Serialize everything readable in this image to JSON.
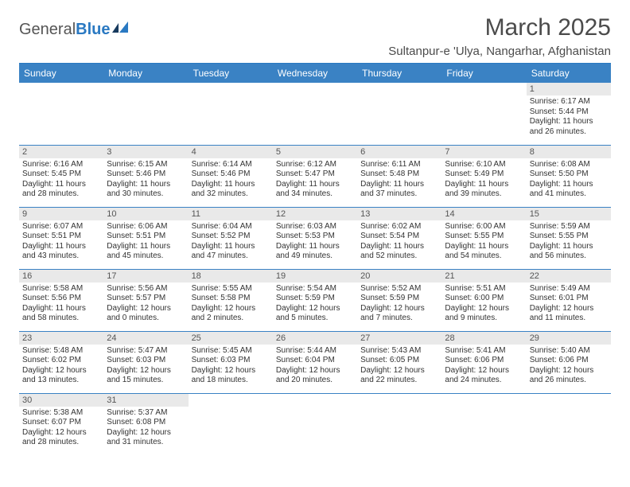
{
  "brand": {
    "part1": "General",
    "part2": "Blue"
  },
  "title": "March 2025",
  "location": "Sultanpur-e 'Ulya, Nangarhar, Afghanistan",
  "colors": {
    "header_bg": "#3a82c4",
    "header_text": "#ffffff",
    "daynum_bg": "#e9e9e9",
    "border": "#3a82c4",
    "text": "#333333"
  },
  "day_labels": [
    "Sunday",
    "Monday",
    "Tuesday",
    "Wednesday",
    "Thursday",
    "Friday",
    "Saturday"
  ],
  "weeks": [
    [
      null,
      null,
      null,
      null,
      null,
      null,
      {
        "n": "1",
        "sr": "Sunrise: 6:17 AM",
        "ss": "Sunset: 5:44 PM",
        "dl": "Daylight: 11 hours and 26 minutes."
      }
    ],
    [
      {
        "n": "2",
        "sr": "Sunrise: 6:16 AM",
        "ss": "Sunset: 5:45 PM",
        "dl": "Daylight: 11 hours and 28 minutes."
      },
      {
        "n": "3",
        "sr": "Sunrise: 6:15 AM",
        "ss": "Sunset: 5:46 PM",
        "dl": "Daylight: 11 hours and 30 minutes."
      },
      {
        "n": "4",
        "sr": "Sunrise: 6:14 AM",
        "ss": "Sunset: 5:46 PM",
        "dl": "Daylight: 11 hours and 32 minutes."
      },
      {
        "n": "5",
        "sr": "Sunrise: 6:12 AM",
        "ss": "Sunset: 5:47 PM",
        "dl": "Daylight: 11 hours and 34 minutes."
      },
      {
        "n": "6",
        "sr": "Sunrise: 6:11 AM",
        "ss": "Sunset: 5:48 PM",
        "dl": "Daylight: 11 hours and 37 minutes."
      },
      {
        "n": "7",
        "sr": "Sunrise: 6:10 AM",
        "ss": "Sunset: 5:49 PM",
        "dl": "Daylight: 11 hours and 39 minutes."
      },
      {
        "n": "8",
        "sr": "Sunrise: 6:08 AM",
        "ss": "Sunset: 5:50 PM",
        "dl": "Daylight: 11 hours and 41 minutes."
      }
    ],
    [
      {
        "n": "9",
        "sr": "Sunrise: 6:07 AM",
        "ss": "Sunset: 5:51 PM",
        "dl": "Daylight: 11 hours and 43 minutes."
      },
      {
        "n": "10",
        "sr": "Sunrise: 6:06 AM",
        "ss": "Sunset: 5:51 PM",
        "dl": "Daylight: 11 hours and 45 minutes."
      },
      {
        "n": "11",
        "sr": "Sunrise: 6:04 AM",
        "ss": "Sunset: 5:52 PM",
        "dl": "Daylight: 11 hours and 47 minutes."
      },
      {
        "n": "12",
        "sr": "Sunrise: 6:03 AM",
        "ss": "Sunset: 5:53 PM",
        "dl": "Daylight: 11 hours and 49 minutes."
      },
      {
        "n": "13",
        "sr": "Sunrise: 6:02 AM",
        "ss": "Sunset: 5:54 PM",
        "dl": "Daylight: 11 hours and 52 minutes."
      },
      {
        "n": "14",
        "sr": "Sunrise: 6:00 AM",
        "ss": "Sunset: 5:55 PM",
        "dl": "Daylight: 11 hours and 54 minutes."
      },
      {
        "n": "15",
        "sr": "Sunrise: 5:59 AM",
        "ss": "Sunset: 5:55 PM",
        "dl": "Daylight: 11 hours and 56 minutes."
      }
    ],
    [
      {
        "n": "16",
        "sr": "Sunrise: 5:58 AM",
        "ss": "Sunset: 5:56 PM",
        "dl": "Daylight: 11 hours and 58 minutes."
      },
      {
        "n": "17",
        "sr": "Sunrise: 5:56 AM",
        "ss": "Sunset: 5:57 PM",
        "dl": "Daylight: 12 hours and 0 minutes."
      },
      {
        "n": "18",
        "sr": "Sunrise: 5:55 AM",
        "ss": "Sunset: 5:58 PM",
        "dl": "Daylight: 12 hours and 2 minutes."
      },
      {
        "n": "19",
        "sr": "Sunrise: 5:54 AM",
        "ss": "Sunset: 5:59 PM",
        "dl": "Daylight: 12 hours and 5 minutes."
      },
      {
        "n": "20",
        "sr": "Sunrise: 5:52 AM",
        "ss": "Sunset: 5:59 PM",
        "dl": "Daylight: 12 hours and 7 minutes."
      },
      {
        "n": "21",
        "sr": "Sunrise: 5:51 AM",
        "ss": "Sunset: 6:00 PM",
        "dl": "Daylight: 12 hours and 9 minutes."
      },
      {
        "n": "22",
        "sr": "Sunrise: 5:49 AM",
        "ss": "Sunset: 6:01 PM",
        "dl": "Daylight: 12 hours and 11 minutes."
      }
    ],
    [
      {
        "n": "23",
        "sr": "Sunrise: 5:48 AM",
        "ss": "Sunset: 6:02 PM",
        "dl": "Daylight: 12 hours and 13 minutes."
      },
      {
        "n": "24",
        "sr": "Sunrise: 5:47 AM",
        "ss": "Sunset: 6:03 PM",
        "dl": "Daylight: 12 hours and 15 minutes."
      },
      {
        "n": "25",
        "sr": "Sunrise: 5:45 AM",
        "ss": "Sunset: 6:03 PM",
        "dl": "Daylight: 12 hours and 18 minutes."
      },
      {
        "n": "26",
        "sr": "Sunrise: 5:44 AM",
        "ss": "Sunset: 6:04 PM",
        "dl": "Daylight: 12 hours and 20 minutes."
      },
      {
        "n": "27",
        "sr": "Sunrise: 5:43 AM",
        "ss": "Sunset: 6:05 PM",
        "dl": "Daylight: 12 hours and 22 minutes."
      },
      {
        "n": "28",
        "sr": "Sunrise: 5:41 AM",
        "ss": "Sunset: 6:06 PM",
        "dl": "Daylight: 12 hours and 24 minutes."
      },
      {
        "n": "29",
        "sr": "Sunrise: 5:40 AM",
        "ss": "Sunset: 6:06 PM",
        "dl": "Daylight: 12 hours and 26 minutes."
      }
    ],
    [
      {
        "n": "30",
        "sr": "Sunrise: 5:38 AM",
        "ss": "Sunset: 6:07 PM",
        "dl": "Daylight: 12 hours and 28 minutes."
      },
      {
        "n": "31",
        "sr": "Sunrise: 5:37 AM",
        "ss": "Sunset: 6:08 PM",
        "dl": "Daylight: 12 hours and 31 minutes."
      },
      null,
      null,
      null,
      null,
      null
    ]
  ]
}
